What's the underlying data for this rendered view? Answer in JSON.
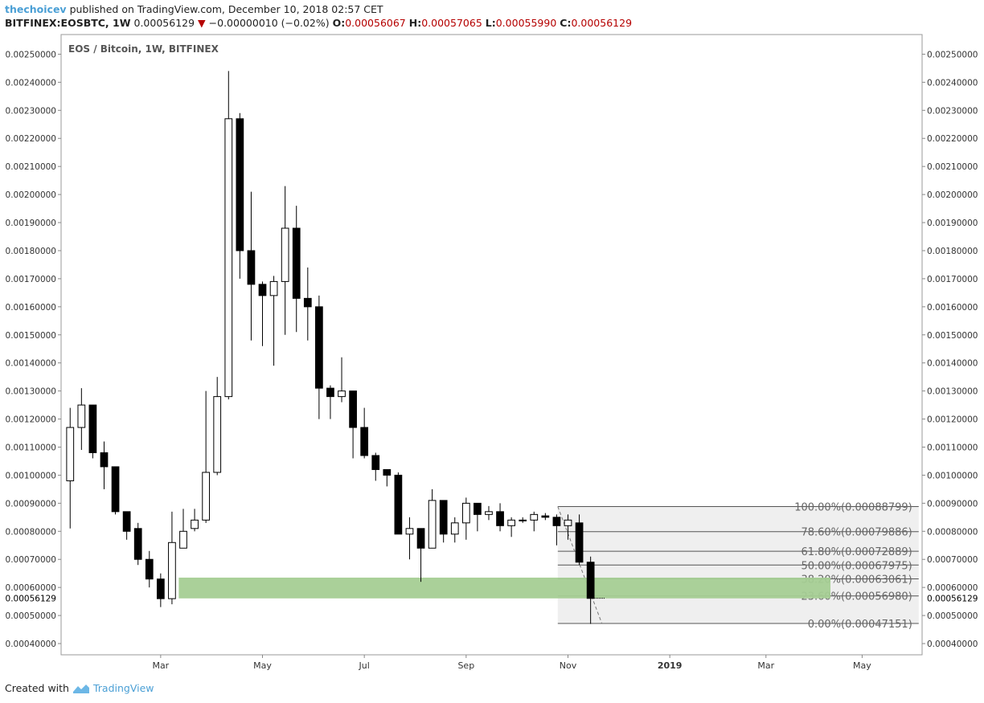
{
  "header": {
    "author": "thechoicev",
    "published_text": "published on TradingView.com, December 10, 2018 02:57 CET",
    "symbol": "BITFINEX:EOSBTC, 1W",
    "last": "0.00056129",
    "change": "−0.00000010 (−0.02%)",
    "open_label": "O:",
    "open": "0.00056067",
    "high_label": "H:",
    "high": "0.00057065",
    "low_label": "L:",
    "low": "0.00055990",
    "close_label": "C:",
    "close": "0.00056129"
  },
  "footer": {
    "created_with": "Created with",
    "brand": "TradingView"
  },
  "chart_data": {
    "type": "candlestick",
    "title": "EOS / Bitcoin, 1W, BITFINEX",
    "ylim": [
      0.00036,
      0.00257
    ],
    "y_ticks": [
      "0.00250000",
      "0.00240000",
      "0.00230000",
      "0.00220000",
      "0.00210000",
      "0.00200000",
      "0.00190000",
      "0.00180000",
      "0.00170000",
      "0.00160000",
      "0.00150000",
      "0.00140000",
      "0.00130000",
      "0.00120000",
      "0.00110000",
      "0.00100000",
      "0.00090000",
      "0.00080000",
      "0.00070000",
      "0.00060000",
      "0.00050000",
      "0.00040000"
    ],
    "x_ticks": [
      {
        "label": "Mar",
        "week": 8
      },
      {
        "label": "May",
        "week": 17
      },
      {
        "label": "Jul",
        "week": 26
      },
      {
        "label": "Sep",
        "week": 35
      },
      {
        "label": "Nov",
        "week": 44
      },
      {
        "label": "2019",
        "week": 53
      },
      {
        "label": "Mar",
        "week": 61.5
      },
      {
        "label": "May",
        "week": 70
      }
    ],
    "week_range": [
      -0.8,
      75.3
    ],
    "last_price_label": "0.00056129",
    "last_price": 0.00056129,
    "candles": [
      {
        "w": 0,
        "o": 0.00098,
        "h": 0.00124,
        "l": 0.00081,
        "c": 0.00117
      },
      {
        "w": 1,
        "o": 0.00117,
        "h": 0.00131,
        "l": 0.00109,
        "c": 0.00125
      },
      {
        "w": 2,
        "o": 0.00125,
        "h": 0.00125,
        "l": 0.00106,
        "c": 0.00108
      },
      {
        "w": 3,
        "o": 0.00108,
        "h": 0.00112,
        "l": 0.00095,
        "c": 0.00103
      },
      {
        "w": 4,
        "o": 0.00103,
        "h": 0.00103,
        "l": 0.00086,
        "c": 0.00087
      },
      {
        "w": 5,
        "o": 0.00087,
        "h": 0.00087,
        "l": 0.00077,
        "c": 0.0008
      },
      {
        "w": 6,
        "o": 0.00081,
        "h": 0.00083,
        "l": 0.00068,
        "c": 0.0007
      },
      {
        "w": 7,
        "o": 0.0007,
        "h": 0.00073,
        "l": 0.0006,
        "c": 0.00063
      },
      {
        "w": 8,
        "o": 0.00063,
        "h": 0.00065,
        "l": 0.00053,
        "c": 0.00056
      },
      {
        "w": 9,
        "o": 0.00056,
        "h": 0.00087,
        "l": 0.00054,
        "c": 0.00076
      },
      {
        "w": 10,
        "o": 0.00074,
        "h": 0.00088,
        "l": 0.00074,
        "c": 0.0008
      },
      {
        "w": 11,
        "o": 0.00081,
        "h": 0.00088,
        "l": 0.0008,
        "c": 0.00084
      },
      {
        "w": 12,
        "o": 0.00084,
        "h": 0.0013,
        "l": 0.00083,
        "c": 0.00101
      },
      {
        "w": 13,
        "o": 0.00101,
        "h": 0.00135,
        "l": 0.001,
        "c": 0.00128
      },
      {
        "w": 14,
        "o": 0.00128,
        "h": 0.00244,
        "l": 0.00127,
        "c": 0.00227
      },
      {
        "w": 15,
        "o": 0.00227,
        "h": 0.00229,
        "l": 0.0017,
        "c": 0.0018
      },
      {
        "w": 16,
        "o": 0.0018,
        "h": 0.00201,
        "l": 0.00148,
        "c": 0.00168
      },
      {
        "w": 17,
        "o": 0.00168,
        "h": 0.00169,
        "l": 0.00146,
        "c": 0.00164
      },
      {
        "w": 18,
        "o": 0.00164,
        "h": 0.00171,
        "l": 0.00139,
        "c": 0.00169
      },
      {
        "w": 19,
        "o": 0.00169,
        "h": 0.00203,
        "l": 0.0015,
        "c": 0.00188
      },
      {
        "w": 20,
        "o": 0.00188,
        "h": 0.00196,
        "l": 0.00151,
        "c": 0.00163
      },
      {
        "w": 21,
        "o": 0.00163,
        "h": 0.00174,
        "l": 0.00148,
        "c": 0.0016
      },
      {
        "w": 22,
        "o": 0.0016,
        "h": 0.00164,
        "l": 0.0012,
        "c": 0.00131
      },
      {
        "w": 23,
        "o": 0.00131,
        "h": 0.00132,
        "l": 0.0012,
        "c": 0.00128
      },
      {
        "w": 24,
        "o": 0.00128,
        "h": 0.00142,
        "l": 0.00126,
        "c": 0.0013
      },
      {
        "w": 25,
        "o": 0.0013,
        "h": 0.0013,
        "l": 0.00106,
        "c": 0.00117
      },
      {
        "w": 26,
        "o": 0.00117,
        "h": 0.00124,
        "l": 0.00106,
        "c": 0.00107
      },
      {
        "w": 27,
        "o": 0.00107,
        "h": 0.00108,
        "l": 0.00098,
        "c": 0.00102
      },
      {
        "w": 28,
        "o": 0.00102,
        "h": 0.00102,
        "l": 0.00096,
        "c": 0.001
      },
      {
        "w": 29,
        "o": 0.001,
        "h": 0.00101,
        "l": 0.00079,
        "c": 0.00079
      },
      {
        "w": 30,
        "o": 0.00079,
        "h": 0.00085,
        "l": 0.0007,
        "c": 0.00081
      },
      {
        "w": 31,
        "o": 0.00081,
        "h": 0.00081,
        "l": 0.00062,
        "c": 0.00074
      },
      {
        "w": 32,
        "o": 0.00074,
        "h": 0.00095,
        "l": 0.00074,
        "c": 0.00091
      },
      {
        "w": 33,
        "o": 0.00091,
        "h": 0.00091,
        "l": 0.00076,
        "c": 0.00079
      },
      {
        "w": 34,
        "o": 0.00079,
        "h": 0.00085,
        "l": 0.00076,
        "c": 0.00083
      },
      {
        "w": 35,
        "o": 0.00083,
        "h": 0.00092,
        "l": 0.00077,
        "c": 0.0009
      },
      {
        "w": 36,
        "o": 0.0009,
        "h": 0.0009,
        "l": 0.0008,
        "c": 0.00086
      },
      {
        "w": 37,
        "o": 0.00086,
        "h": 0.00089,
        "l": 0.00084,
        "c": 0.00087
      },
      {
        "w": 38,
        "o": 0.00087,
        "h": 0.0009,
        "l": 0.0008,
        "c": 0.00082
      },
      {
        "w": 39,
        "o": 0.00082,
        "h": 0.00085,
        "l": 0.00078,
        "c": 0.00084
      },
      {
        "w": 40,
        "o": 0.00084,
        "h": 0.00085,
        "l": 0.00083,
        "c": 0.00084
      },
      {
        "w": 41,
        "o": 0.00084,
        "h": 0.00087,
        "l": 0.0008,
        "c": 0.00086
      },
      {
        "w": 42,
        "o": 0.000855,
        "h": 0.000865,
        "l": 0.00084,
        "c": 0.00085
      },
      {
        "w": 43,
        "o": 0.00085,
        "h": 0.00086,
        "l": 0.00075,
        "c": 0.00082
      },
      {
        "w": 44,
        "o": 0.00082,
        "h": 0.00086,
        "l": 0.00077,
        "c": 0.00084
      },
      {
        "w": 45,
        "o": 0.00083,
        "h": 0.00086,
        "l": 0.00068,
        "c": 0.00069
      },
      {
        "w": 46,
        "o": 0.00069,
        "h": 0.00071,
        "l": 0.00047,
        "c": 0.000561
      }
    ],
    "support_zone": {
      "w_start": 9.6,
      "w_end": 67.2,
      "low": 0.000561,
      "high": 0.000635,
      "color": "#a5cd93"
    },
    "fibonacci": {
      "w_start": 43.1,
      "w_end": 75.0,
      "levels": [
        {
          "label": "100.00%(0.00088799)",
          "value": 0.00088799
        },
        {
          "label": "78.60%(0.00079886)",
          "value": 0.00079886
        },
        {
          "label": "61.80%(0.00072889)",
          "value": 0.00072889
        },
        {
          "label": "50.00%(0.00067975)",
          "value": 0.00067975
        },
        {
          "label": "38.20%(0.00063061)",
          "value": 0.00063061
        },
        {
          "label": "23.60%(0.00056980)",
          "value": 0.0005698
        },
        {
          "label": "0.00%(0.00047151)",
          "value": 0.00047151
        }
      ],
      "trend": {
        "from_w": 43.1,
        "from_v": 0.00088799,
        "to_w": 47.0,
        "to_v": 0.00047151
      }
    },
    "colors": {
      "up_fill": "#ffffff",
      "down_fill": "#000000",
      "grid_border": "#9a9a9a",
      "fib_bg": "#efefef",
      "fib_line": "#555555"
    }
  }
}
